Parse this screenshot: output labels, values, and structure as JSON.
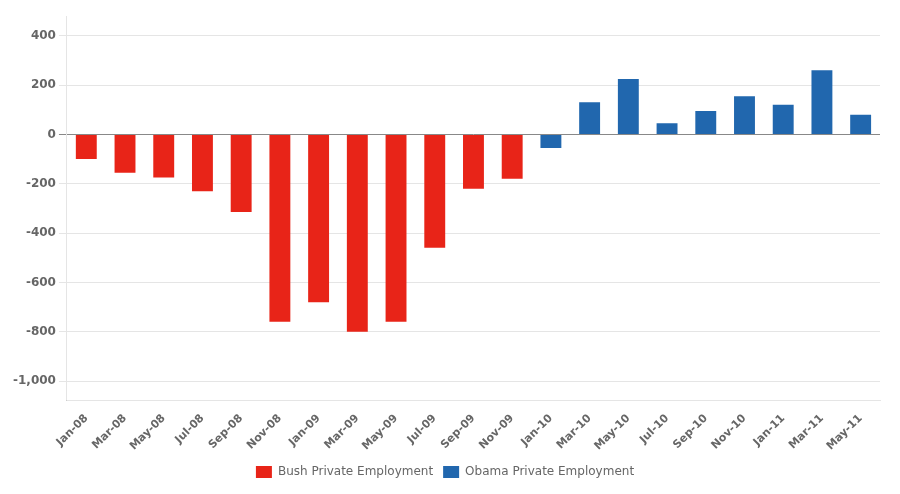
{
  "chart_data": {
    "type": "bar",
    "categories": [
      "Jan-08",
      "Mar-08",
      "May-08",
      "Jul-08",
      "Sep-08",
      "Nov-08",
      "Jan-09",
      "Mar-09",
      "May-09",
      "Jul-09",
      "Sep-09",
      "Nov-09",
      "Jan-10",
      "Mar-10",
      "May-10",
      "Jul-10",
      "Sep-10",
      "Nov-10",
      "Jan-11",
      "Mar-11",
      "May-11"
    ],
    "series": [
      {
        "name": "Bush Private Employment",
        "color": "#e82418",
        "values": [
          -100,
          -155,
          -175,
          -230,
          -315,
          -760,
          -680,
          -800,
          -760,
          -460,
          -220,
          -180,
          null,
          null,
          null,
          null,
          null,
          null,
          null,
          null,
          null
        ]
      },
      {
        "name": "Obama Private Employment",
        "color": "#2167ae",
        "values": [
          null,
          null,
          null,
          null,
          null,
          null,
          null,
          null,
          null,
          null,
          null,
          null,
          -55,
          130,
          225,
          45,
          95,
          155,
          120,
          260,
          80
        ]
      }
    ],
    "ylim": [
      -1080,
      480
    ],
    "yticks": [
      {
        "value": -1000,
        "label": "-1,000"
      },
      -800,
      -600,
      -400,
      -200,
      0,
      200,
      400
    ],
    "grid": true,
    "legend": "bottom"
  }
}
